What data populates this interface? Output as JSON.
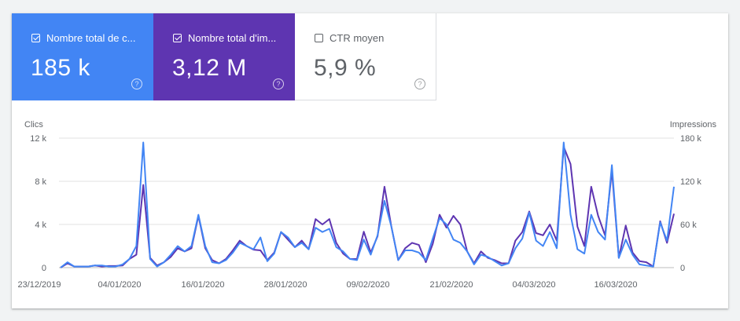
{
  "metrics": [
    {
      "label": "Nombre total de c...",
      "value": "185 k",
      "checked": true,
      "color": "#4285f4",
      "help": "?"
    },
    {
      "label": "Nombre total d'im...",
      "value": "3,12 M",
      "checked": true,
      "color": "#5e35b1",
      "help": "?"
    },
    {
      "label": "CTR moyen",
      "value": "5,9 %",
      "checked": false,
      "color": "#ffffff",
      "help": "?"
    }
  ],
  "chart_data": {
    "type": "line",
    "left_axis_title": "Clics",
    "right_axis_title": "Impressions",
    "left_ticks": [
      "12 k",
      "8 k",
      "4 k",
      "0"
    ],
    "right_ticks": [
      "180 k",
      "120 k",
      "60 k",
      "0"
    ],
    "ylim_left": [
      0,
      12000
    ],
    "ylim_right": [
      0,
      180000
    ],
    "x_labels": [
      "23/12/2019",
      "04/01/2020",
      "16/01/2020",
      "28/01/2020",
      "09/02/2020",
      "21/02/2020",
      "04/03/2020",
      "16/03/2020"
    ],
    "series": [
      {
        "name": "Nombre total de clics",
        "axis": "left",
        "color": "#4285f4",
        "values": [
          0,
          500,
          100,
          100,
          100,
          200,
          200,
          100,
          100,
          300,
          800,
          2000,
          11600,
          800,
          100,
          500,
          1200,
          2000,
          1500,
          2000,
          4900,
          2000,
          500,
          400,
          700,
          1400,
          2300,
          2000,
          1700,
          2800,
          600,
          1300,
          3300,
          2800,
          1900,
          2300,
          1700,
          3700,
          3300,
          3600,
          1900,
          1500,
          800,
          700,
          2600,
          1200,
          3000,
          6200,
          3800,
          700,
          1600,
          1600,
          1400,
          700,
          2700,
          4600,
          4000,
          2600,
          2300,
          1500,
          300,
          1200,
          1000,
          600,
          200,
          400,
          1800,
          2700,
          5100,
          2500,
          2000,
          3300,
          1800,
          11600,
          4900,
          1700,
          1300,
          4900,
          3300,
          2600,
          9500,
          900,
          2600,
          1200,
          300,
          200,
          100,
          4200,
          2500,
          7500
        ],
        "color_name": "blue"
      },
      {
        "name": "Nombre total d'impressions",
        "axis": "right",
        "color": "#5e35b1",
        "values": [
          0,
          6000,
          1500,
          1500,
          1500,
          3000,
          1500,
          2250,
          2250,
          3000,
          12000,
          18000,
          115000,
          13500,
          3000,
          7500,
          15000,
          27000,
          22500,
          27000,
          72000,
          27000,
          10500,
          6000,
          12000,
          24000,
          37500,
          30000,
          25000,
          24000,
          10500,
          21000,
          49500,
          39000,
          28500,
          37500,
          25500,
          67500,
          60000,
          67500,
          34500,
          19500,
          12000,
          12000,
          50000,
          21000,
          43500,
          112500,
          57000,
          10500,
          27000,
          34500,
          31500,
          7500,
          33000,
          73500,
          55500,
          72000,
          60000,
          22500,
          6000,
          22500,
          13500,
          10500,
          6000,
          6000,
          37500,
          49500,
          78000,
          48000,
          45000,
          60000,
          37500,
          168000,
          144000,
          57000,
          30000,
          112500,
          72000,
          45000,
          135000,
          13500,
          58500,
          21000,
          9000,
          7500,
          1500,
          64500,
          34500,
          75000
        ]
      }
    ]
  }
}
